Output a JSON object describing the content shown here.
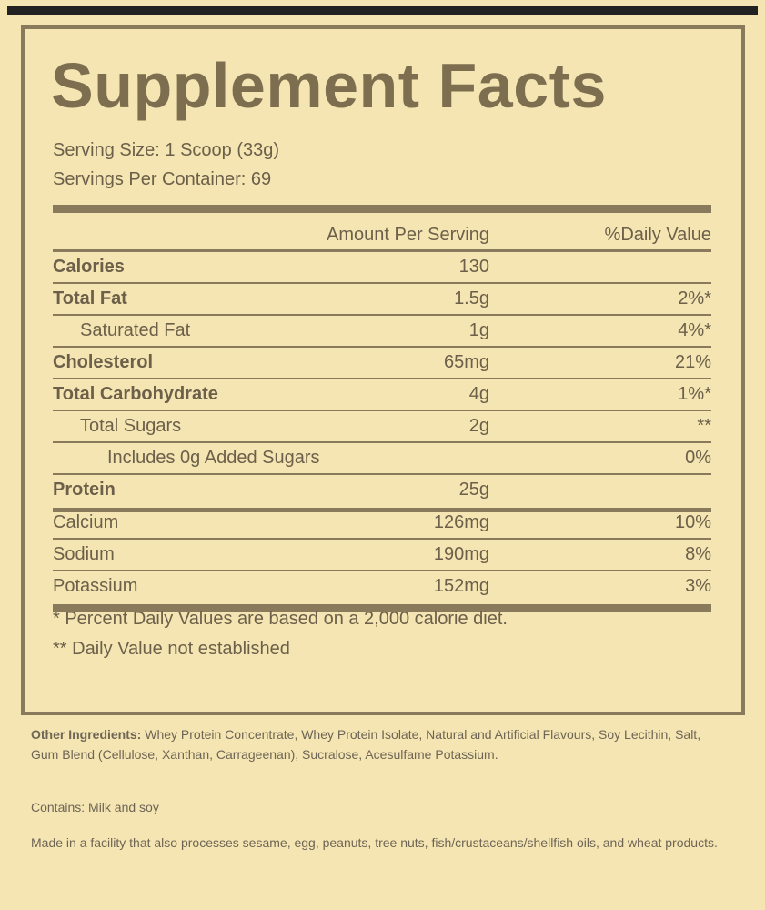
{
  "header": {
    "title": "Supplement Facts",
    "serving_size": "Serving Size: 1 Scoop (33g)",
    "servings_per_container": "Servings Per Container: 69"
  },
  "table": {
    "columns": [
      "Amount Per Serving",
      "%Daily Value"
    ],
    "sections": [
      [
        {
          "name": "Calories",
          "amount": "130",
          "bold": true
        },
        {
          "name": "Total Fat",
          "amount": "1.5g",
          "daily_value": "2%*",
          "bold": true
        },
        {
          "name": "Saturated Fat",
          "amount": "1g",
          "daily_value": "4%*",
          "indent": 1
        },
        {
          "name": "Cholesterol",
          "amount": "65mg",
          "daily_value": "21%",
          "bold": true
        },
        {
          "name": "Total Carbohydrate",
          "amount": "4g",
          "daily_value": "1%*",
          "bold": true
        },
        {
          "name": "Total Sugars",
          "amount": "2g",
          "daily_value": "**",
          "indent": 1
        },
        {
          "name": "Includes 0g Added Sugars",
          "daily_value": "0%",
          "indent": 2
        },
        {
          "name": "Protein",
          "amount": "25g",
          "bold": true
        }
      ],
      [
        {
          "name": "Calcium",
          "amount": "126mg",
          "daily_value": "10%"
        },
        {
          "name": "Sodium",
          "amount": "190mg",
          "daily_value": "8%"
        },
        {
          "name": "Potassium",
          "amount": "152mg",
          "daily_value": "3%"
        }
      ]
    ]
  },
  "footnotes": [
    "* Percent Daily Values are based on a 2,000 calorie diet.",
    "** Daily Value not established"
  ],
  "ingredients": {
    "label": "Other Ingredients:",
    "text": "Whey Protein Concentrate, Whey Protein Isolate, Natural and Artificial Flavours, Soy Lecithin, Salt, Gum Blend (Cellulose, Xanthan, Carrageenan), Sucralose, Acesulfame Potassium."
  },
  "contains": "Contains: Milk and soy",
  "facility": "Made in a facility that also processes sesame, egg, peanuts, tree nuts, fish/crustaceans/shellfish oils, and wheat products."
}
